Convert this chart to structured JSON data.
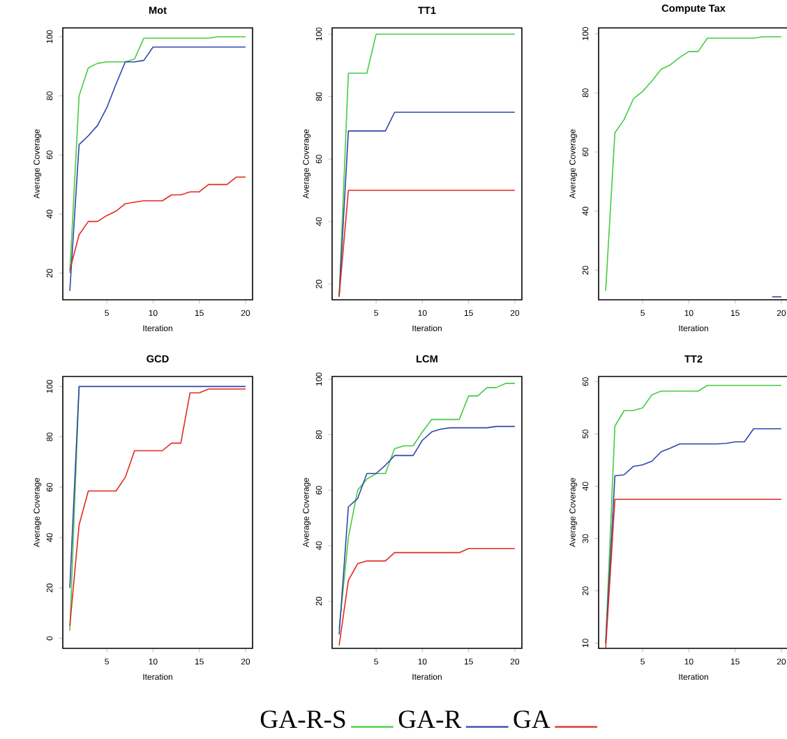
{
  "chart_data": [
    {
      "type": "line",
      "title": "Mot",
      "xlabel": "Iteration",
      "ylabel": "Average Coverage",
      "x": [
        1,
        2,
        3,
        4,
        5,
        6,
        7,
        8,
        9,
        10,
        11,
        12,
        13,
        14,
        15,
        16,
        17,
        18,
        19,
        20
      ],
      "xlim": [
        0.24,
        20.76
      ],
      "xticks": [
        5,
        10,
        15,
        20
      ],
      "ylim": [
        11,
        103
      ],
      "yticks": [
        20,
        40,
        60,
        80,
        100
      ],
      "series": [
        {
          "color": "#44cc44",
          "values": [
            20,
            80,
            89.5,
            91,
            91.5,
            91.5,
            91.5,
            92.5,
            99.5,
            99.5,
            99.5,
            99.5,
            99.5,
            99.5,
            99.5,
            99.5,
            100,
            100,
            100,
            100
          ]
        },
        {
          "color": "#3344aa",
          "values": [
            14,
            63.5,
            66.5,
            70,
            76,
            84,
            91.5,
            91.5,
            92,
            96.5,
            96.5,
            96.5,
            96.5,
            96.5,
            96.5,
            96.5,
            96.5,
            96.5,
            96.5,
            96.5
          ]
        },
        {
          "color": "#e02a20",
          "values": [
            21,
            33,
            37.5,
            37.5,
            39.5,
            41,
            43.5,
            44,
            44.5,
            44.5,
            44.5,
            46.5,
            46.5,
            47.5,
            47.5,
            50,
            50,
            50,
            52.5,
            52.5
          ]
        }
      ]
    },
    {
      "type": "line",
      "title": "TT1",
      "xlabel": "Iteration",
      "ylabel": "Average Coverage",
      "x": [
        1,
        2,
        3,
        4,
        5,
        6,
        7,
        8,
        9,
        10,
        11,
        12,
        13,
        14,
        15,
        16,
        17,
        18,
        19,
        20
      ],
      "xlim": [
        0.24,
        20.76
      ],
      "xticks": [
        5,
        10,
        15,
        20
      ],
      "ylim": [
        15,
        102
      ],
      "yticks": [
        20,
        40,
        60,
        80,
        100
      ],
      "series": [
        {
          "color": "#44cc44",
          "values": [
            16,
            87.5,
            87.5,
            87.5,
            100,
            100,
            100,
            100,
            100,
            100,
            100,
            100,
            100,
            100,
            100,
            100,
            100,
            100,
            100,
            100
          ]
        },
        {
          "color": "#3344aa",
          "values": [
            16,
            69,
            69,
            69,
            69,
            69,
            75,
            75,
            75,
            75,
            75,
            75,
            75,
            75,
            75,
            75,
            75,
            75,
            75,
            75
          ]
        },
        {
          "color": "#e02a20",
          "values": [
            16,
            50,
            50,
            50,
            50,
            50,
            50,
            50,
            50,
            50,
            50,
            50,
            50,
            50,
            50,
            50,
            50,
            50,
            50,
            50
          ]
        }
      ]
    },
    {
      "type": "line",
      "title": "Compute Tax",
      "xlabel": "Iteration",
      "ylabel": "Average Coverage",
      "x": [
        1,
        2,
        3,
        4,
        5,
        6,
        7,
        8,
        9,
        10,
        11,
        12,
        13,
        14,
        15,
        16,
        17,
        18,
        19,
        20
      ],
      "xlim": [
        0.24,
        20.76
      ],
      "xticks": [
        5,
        10,
        15,
        20
      ],
      "ylim": [
        10,
        102
      ],
      "yticks": [
        20,
        40,
        60,
        80,
        100
      ],
      "series": [
        {
          "color": "#44cc44",
          "values": [
            13,
            66.5,
            71,
            78,
            80.5,
            84,
            88,
            89.5,
            92,
            94,
            94,
            98.5,
            98.5,
            98.5,
            98.5,
            98.5,
            98.5,
            99,
            99,
            99
          ]
        },
        {
          "color": "#3344aa",
          "values": [
            null,
            null,
            null,
            null,
            null,
            null,
            null,
            null,
            null,
            null,
            null,
            null,
            null,
            null,
            null,
            null,
            null,
            null,
            11,
            11
          ]
        }
      ]
    },
    {
      "type": "line",
      "title": "GCD",
      "xlabel": "Iteration",
      "ylabel": "Average Coverage",
      "x": [
        1,
        2,
        3,
        4,
        5,
        6,
        7,
        8,
        9,
        10,
        11,
        12,
        13,
        14,
        15,
        16,
        17,
        18,
        19,
        20
      ],
      "xlim": [
        0.24,
        20.76
      ],
      "xticks": [
        5,
        10,
        15,
        20
      ],
      "ylim": [
        -4,
        104
      ],
      "yticks": [
        0,
        20,
        40,
        60,
        80,
        100
      ],
      "series": [
        {
          "color": "#44cc44",
          "values": [
            3,
            100,
            null,
            null,
            null,
            null,
            null,
            null,
            null,
            null,
            null,
            null,
            null,
            null,
            null,
            null,
            null,
            null,
            null,
            null
          ]
        },
        {
          "color": "#3344aa",
          "values": [
            20,
            100,
            100,
            100,
            100,
            100,
            100,
            100,
            100,
            100,
            100,
            100,
            100,
            100,
            100,
            100,
            100,
            100,
            100,
            100
          ]
        },
        {
          "color": "#e02a20",
          "values": [
            5,
            45,
            58.5,
            58.5,
            58.5,
            58.5,
            64,
            74.5,
            74.5,
            74.5,
            74.5,
            77.5,
            77.5,
            97.5,
            97.5,
            99,
            99,
            99,
            99,
            99
          ]
        }
      ]
    },
    {
      "type": "line",
      "title": "LCM",
      "xlabel": "Iteration",
      "ylabel": "Average Coverage",
      "x": [
        1,
        2,
        3,
        4,
        5,
        6,
        7,
        8,
        9,
        10,
        11,
        12,
        13,
        14,
        15,
        16,
        17,
        18,
        19,
        20
      ],
      "xlim": [
        0.24,
        20.76
      ],
      "xticks": [
        5,
        10,
        15,
        20
      ],
      "ylim": [
        3,
        101
      ],
      "yticks": [
        20,
        40,
        60,
        80,
        100
      ],
      "legend": "bottom",
      "series": [
        {
          "name": "GA-R-S",
          "color": "#44cc44",
          "values": [
            10,
            43,
            60,
            64,
            66,
            66,
            75,
            76,
            76,
            81,
            85.5,
            85.5,
            85.5,
            85.5,
            94,
            94,
            97,
            97,
            98.5,
            98.5
          ]
        },
        {
          "name": "GA-R",
          "color": "#3344aa",
          "values": [
            8,
            54,
            57,
            66,
            66,
            69,
            72.5,
            72.5,
            72.5,
            78,
            81,
            82,
            82.5,
            82.5,
            82.5,
            82.5,
            82.5,
            83,
            83,
            83
          ]
        },
        {
          "name": "GA",
          "color": "#e02a20",
          "values": [
            4,
            27.5,
            33.5,
            34.5,
            34.5,
            34.5,
            37.5,
            37.5,
            37.5,
            37.5,
            37.5,
            37.5,
            37.5,
            37.5,
            39,
            39,
            39,
            39,
            39,
            39
          ]
        }
      ]
    },
    {
      "type": "line",
      "title": "TT2",
      "xlabel": "Iteration",
      "ylabel": "Average Coverage",
      "x": [
        1,
        2,
        3,
        4,
        5,
        6,
        7,
        8,
        9,
        10,
        11,
        12,
        13,
        14,
        15,
        16,
        17,
        18,
        19,
        20
      ],
      "xlim": [
        0.24,
        20.76
      ],
      "xticks": [
        5,
        10,
        15,
        20
      ],
      "ylim": [
        9,
        61
      ],
      "yticks": [
        10,
        20,
        30,
        40,
        50,
        60
      ],
      "series": [
        {
          "color": "#44cc44",
          "values": [
            10,
            51.5,
            54.5,
            54.5,
            55,
            57.5,
            58.2,
            58.2,
            58.2,
            58.2,
            58.2,
            59.3,
            59.3,
            59.3,
            59.3,
            59.3,
            59.3,
            59.3,
            59.3,
            59.3
          ]
        },
        {
          "color": "#3344aa",
          "values": [
            10,
            42,
            42.2,
            43.8,
            44.1,
            44.8,
            46.6,
            47.3,
            48.1,
            48.1,
            48.1,
            48.1,
            48.1,
            48.2,
            48.5,
            48.5,
            51,
            51,
            51,
            51
          ]
        },
        {
          "color": "#e02a20",
          "values": [
            9,
            37.5,
            37.5,
            37.5,
            37.5,
            37.5,
            37.5,
            37.5,
            37.5,
            37.5,
            37.5,
            37.5,
            37.5,
            37.5,
            37.5,
            37.5,
            37.5,
            37.5,
            37.5,
            37.5
          ]
        }
      ]
    }
  ]
}
